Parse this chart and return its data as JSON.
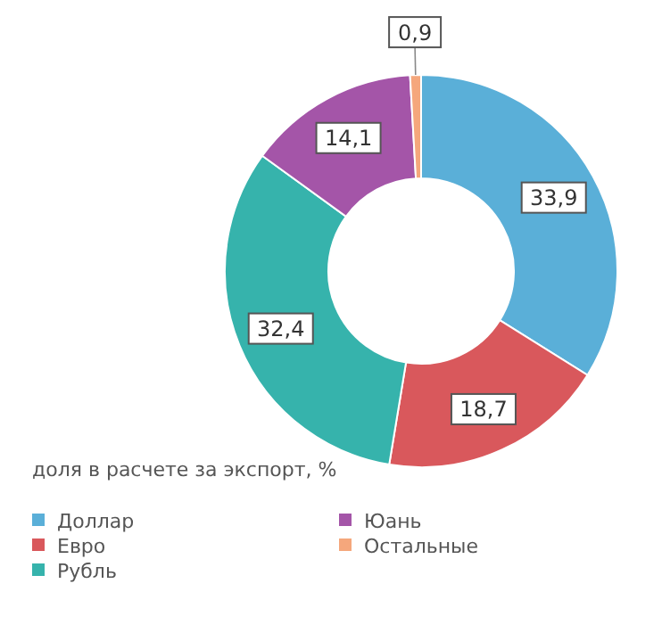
{
  "chart_data": {
    "type": "donut",
    "legend_title": "доля в расчете за экспорт, %",
    "categories": [
      "Доллар",
      "Евро",
      "Рубль",
      "Юань",
      "Остальные"
    ],
    "values": [
      33.9,
      18.7,
      32.4,
      14.1,
      0.9
    ],
    "value_labels": [
      "33,9",
      "18,7",
      "32,4",
      "14,1",
      "0,9"
    ],
    "colors": [
      "#5aafd8",
      "#d9585c",
      "#36b3ac",
      "#a455a8",
      "#f5a77c"
    ],
    "legend": "bottom left"
  }
}
